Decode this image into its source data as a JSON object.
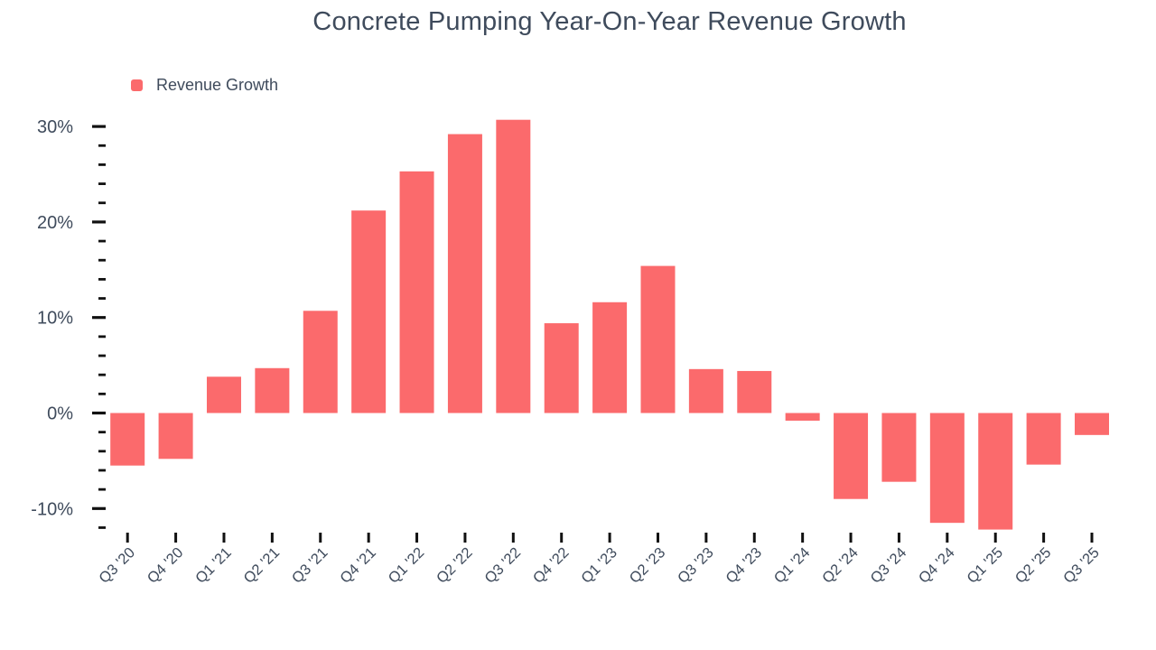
{
  "header": {
    "title": "Concrete Pumping Year-On-Year Revenue Growth"
  },
  "legend": {
    "items": [
      {
        "label": "Revenue Growth",
        "color": "#FB6A6C"
      }
    ]
  },
  "colors": {
    "bar": "#FB6A6C",
    "text": "#3F4B5C",
    "tick": "#111111",
    "background": "#FFFFFF"
  },
  "chart_data": {
    "type": "bar",
    "title": "Concrete Pumping Year-On-Year Revenue Growth",
    "xlabel": "",
    "ylabel": "",
    "grid": false,
    "legend_position": "top-left",
    "value_unit": "percent",
    "ylim": [
      -13,
      32
    ],
    "categories": [
      "Q3 '20",
      "Q4 '20",
      "Q1 '21",
      "Q2 '21",
      "Q3 '21",
      "Q4 '21",
      "Q1 '22",
      "Q2 '22",
      "Q3 '22",
      "Q4 '22",
      "Q1 '23",
      "Q2 '23",
      "Q3 '23",
      "Q4 '23",
      "Q1 '24",
      "Q2 '24",
      "Q3 '24",
      "Q4 '24",
      "Q1 '25",
      "Q2 '25",
      "Q3 '25"
    ],
    "series": [
      {
        "name": "Revenue Growth",
        "color": "#FB6A6C",
        "values": [
          -5.5,
          -4.8,
          3.8,
          4.7,
          10.7,
          21.2,
          25.3,
          29.2,
          30.7,
          9.4,
          11.6,
          15.4,
          4.6,
          4.4,
          -0.8,
          -9.0,
          -7.2,
          -11.5,
          -12.2,
          -5.4,
          -2.3
        ]
      }
    ],
    "y_axis": {
      "major_tick_values": [
        30,
        20,
        10,
        0,
        -10
      ],
      "major_tick_labels": [
        "30%",
        "20%",
        "10%",
        "0%",
        "-10%"
      ],
      "minor_tick_step": 2,
      "minor_tick_range": [
        -12,
        28
      ]
    }
  }
}
